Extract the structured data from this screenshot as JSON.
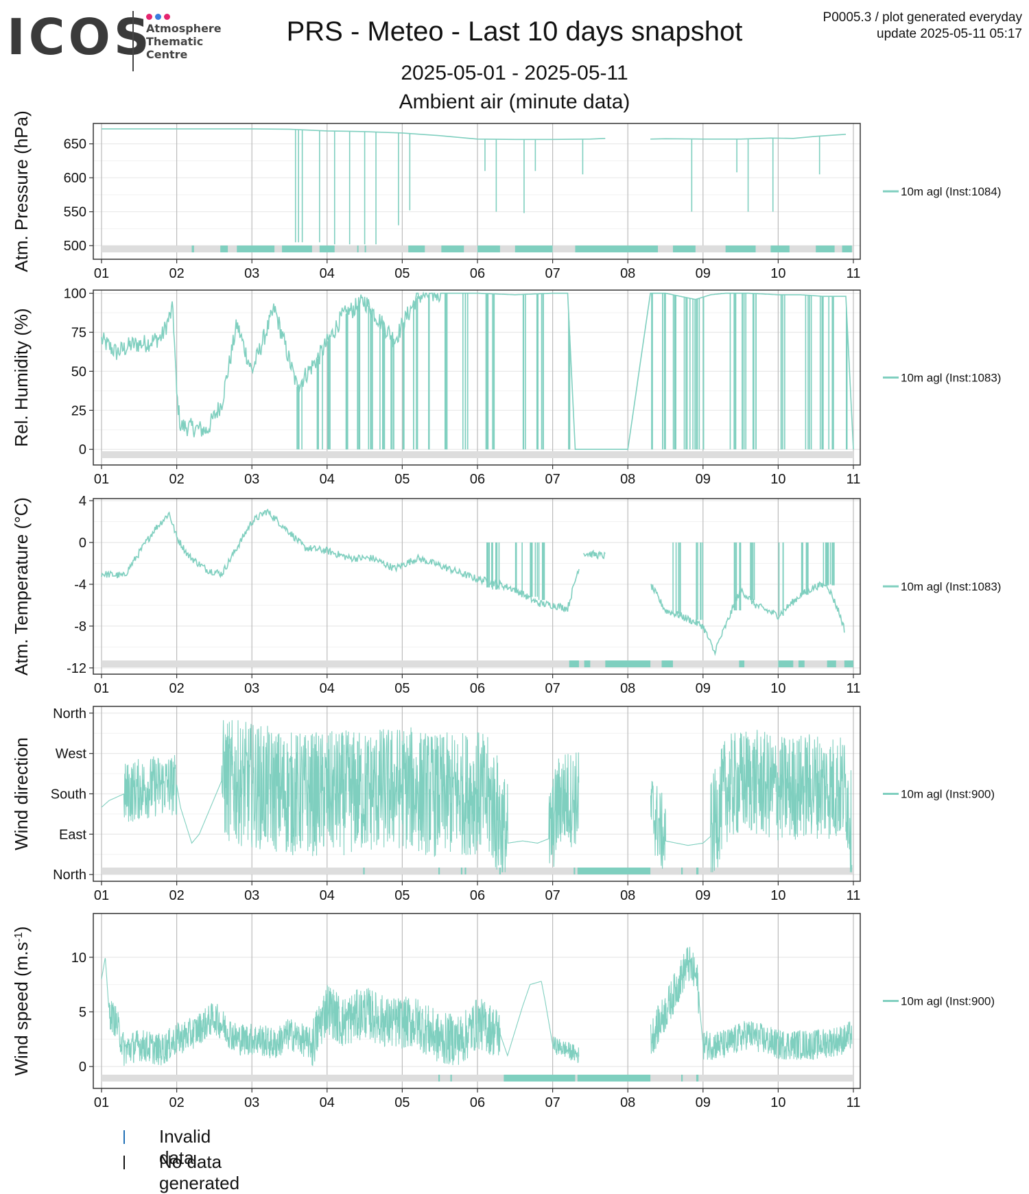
{
  "header": {
    "logo_text": "ICOS",
    "logo_sub": [
      "Atmosphere",
      "Thematic",
      "Centre"
    ],
    "title": "PRS - Meteo - Last 10 days snapshot",
    "date_range": "2025-05-01 - 2025-05-11",
    "subtitle": "Ambient air (minute data)",
    "corner_line1": "P0005.3 / plot generated everyday",
    "corner_line2": "update  2025-05-11 05:17"
  },
  "colors": {
    "series": "#7fcfbf",
    "grid": "#e8e8e8",
    "vgrid": "#bbbbbb",
    "band": "#dddddd",
    "invalid": "#1f6fb5",
    "nodata": "#111111",
    "logo_dots": [
      "#e5256f",
      "#3a7dde",
      "#e5256f"
    ]
  },
  "chart_data": [
    {
      "type": "line",
      "ylabel": "Atm. Pressure (hPa)",
      "legend": "10m agl (Inst:1084)",
      "ylim": [
        480,
        680
      ],
      "yticks": [
        500,
        550,
        600,
        650
      ],
      "yticklabels": [
        "500",
        "550",
        "600",
        "650"
      ],
      "x": [
        0,
        0.5,
        1,
        1.5,
        2,
        2.5,
        3,
        3.5,
        4,
        4.5,
        5,
        5.5,
        6,
        6.5,
        6.7,
        7.3,
        7.5,
        8,
        8.5,
        8.9,
        9.2,
        9.5,
        9.9
      ],
      "values": [
        672,
        672,
        672,
        672,
        672,
        671.5,
        669,
        668,
        666,
        662,
        657,
        656.5,
        656.5,
        657,
        658,
        657,
        657.5,
        657,
        657,
        658.5,
        658,
        661,
        664
      ],
      "spikes": [
        [
          2.58,
          505
        ],
        [
          2.62,
          505
        ],
        [
          2.67,
          505
        ],
        [
          2.9,
          505
        ],
        [
          3.1,
          502
        ],
        [
          3.3,
          502
        ],
        [
          3.5,
          502
        ],
        [
          3.65,
          502
        ],
        [
          3.95,
          530
        ],
        [
          4.1,
          552
        ],
        [
          5.1,
          610
        ],
        [
          5.25,
          550
        ],
        [
          5.62,
          548
        ],
        [
          5.77,
          610
        ],
        [
          6.4,
          605
        ],
        [
          7.85,
          550
        ],
        [
          8.45,
          608
        ],
        [
          8.6,
          550
        ],
        [
          8.93,
          550
        ],
        [
          9.55,
          605
        ]
      ],
      "band_segments": [
        [
          1.2,
          1.23
        ],
        [
          1.58,
          1.68
        ],
        [
          1.8,
          2.3
        ],
        [
          2.4,
          2.8
        ],
        [
          2.9,
          3.1
        ],
        [
          3.4,
          3.4
        ],
        [
          3.5,
          3.5
        ],
        [
          4.08,
          4.3
        ],
        [
          4.52,
          4.82
        ],
        [
          5.0,
          5.3
        ],
        [
          5.5,
          6.0
        ],
        [
          6.3,
          7.4
        ],
        [
          7.6,
          7.9
        ],
        [
          8.3,
          8.7
        ],
        [
          8.9,
          9.15
        ],
        [
          9.5,
          9.75
        ],
        [
          9.85,
          9.98
        ]
      ],
      "xticklabels": [
        "01",
        "02",
        "03",
        "04",
        "05",
        "06",
        "07",
        "08",
        "09",
        "10",
        "11"
      ]
    },
    {
      "type": "line",
      "ylabel": "Rel. Humidity (%)",
      "legend": "10m agl (Inst:1083)",
      "ylim": [
        -10,
        102
      ],
      "yticks": [
        0,
        25,
        50,
        75
      ],
      "yticklabels": [
        "0",
        "25",
        "50",
        "75"
      ],
      "top_tick_label": "100",
      "x": [
        0,
        0.2,
        0.4,
        0.6,
        0.8,
        0.95,
        1.0,
        1.05,
        1.2,
        1.4,
        1.6,
        1.8,
        2.0,
        2.3,
        2.6,
        2.9,
        3.2,
        3.5,
        3.9,
        4.2,
        4.5,
        5.0,
        5.5,
        6.0,
        6.2,
        6.3,
        6.7,
        7.0,
        7.3,
        7.5,
        7.9,
        8.1,
        8.3,
        8.6,
        9.0,
        9.3,
        9.6,
        9.9,
        10.0
      ],
      "values": [
        70,
        62,
        67,
        68,
        72,
        90,
        35,
        15,
        14,
        12,
        30,
        80,
        50,
        90,
        40,
        60,
        85,
        95,
        70,
        98,
        100,
        100,
        99,
        100,
        100,
        0,
        0,
        0,
        100,
        100,
        96,
        99,
        100,
        100,
        99,
        99,
        98,
        98,
        0
      ],
      "drops": [
        2.6,
        2.85,
        3.0,
        3.2,
        3.4,
        3.55,
        3.7,
        3.85,
        4.0,
        4.15,
        4.35,
        4.55,
        4.8,
        5.1,
        5.2,
        5.6,
        5.75,
        5.85,
        6.2,
        6.42,
        6.52,
        6.6,
        6.7,
        7.3,
        7.45,
        7.6,
        7.75,
        7.85,
        7.95,
        8.35,
        8.5,
        8.65,
        9.0,
        9.35,
        9.55,
        9.65,
        9.9
      ],
      "band_segments": [],
      "xticklabels": [
        "01",
        "02",
        "03",
        "04",
        "05",
        "06",
        "07",
        "08",
        "09",
        "10",
        "11"
      ]
    },
    {
      "type": "line",
      "ylabel": "Atm. Temperature (°C)",
      "legend": "10m agl (Inst:1083)",
      "ylim": [
        -12.6,
        4.2
      ],
      "yticks": [
        -12,
        -8,
        -4,
        0,
        4
      ],
      "yticklabels": [
        "-12",
        "-8",
        "-4",
        "0",
        "4"
      ],
      "x": [
        0,
        0.3,
        0.5,
        0.7,
        0.9,
        1.0,
        1.15,
        1.25,
        1.4,
        1.6,
        1.8,
        2.0,
        2.2,
        2.5,
        2.7,
        3.0,
        3.3,
        3.6,
        3.9,
        4.2,
        4.5,
        4.8,
        5.0,
        5.2,
        5.5,
        5.8,
        6.0,
        6.2,
        6.4,
        6.7,
        7.3,
        7.5,
        7.7,
        8.0,
        8.15,
        8.3,
        8.5,
        8.7,
        9.0,
        9.3,
        9.5,
        9.65,
        9.8,
        9.88
      ],
      "values": [
        -3.0,
        -3.2,
        -1.0,
        1.2,
        2.8,
        0.5,
        -1.2,
        -1.8,
        -2.6,
        -3.0,
        -0.5,
        2.0,
        3.0,
        1.0,
        -0.5,
        -0.8,
        -1.5,
        -1.5,
        -2.5,
        -1.5,
        -2.2,
        -3.0,
        -3.5,
        -3.8,
        -4.5,
        -5.8,
        -6.0,
        -6.3,
        -1.0,
        -1.3,
        -4.0,
        -6.5,
        -7.0,
        -8.0,
        -10.5,
        -8.0,
        -4.5,
        -6.0,
        -7.0,
        -5.0,
        -4.2,
        -4.0,
        -6.5,
        -8.3
      ],
      "drops": [
        [
          5.1,
          -4.3
        ],
        [
          5.2,
          -4.5
        ],
        [
          5.5,
          -4.8
        ],
        [
          5.7,
          -5.2
        ],
        [
          5.8,
          -5.5
        ],
        [
          7.6,
          -6.8
        ],
        [
          7.9,
          -7.4
        ],
        [
          8.4,
          -6.5
        ],
        [
          8.6,
          -5.5
        ],
        [
          9.0,
          -7.0
        ],
        [
          9.3,
          -5.0
        ],
        [
          9.6,
          -4.0
        ],
        [
          9.65,
          -4.1
        ]
      ],
      "band_segments": [
        [
          6.22,
          6.35
        ],
        [
          6.42,
          6.5
        ],
        [
          6.7,
          7.3
        ],
        [
          7.45,
          7.6
        ],
        [
          8.48,
          8.55
        ],
        [
          9.0,
          9.2
        ],
        [
          9.27,
          9.35
        ],
        [
          9.65,
          9.77
        ],
        [
          9.88,
          10.0
        ]
      ],
      "xticklabels": [
        "01",
        "02",
        "03",
        "04",
        "05",
        "06",
        "07",
        "08",
        "09",
        "10",
        "11"
      ]
    },
    {
      "type": "line",
      "ylabel": "Wind direction",
      "legend": "10m agl (Inst:900)",
      "ylim": [
        -15,
        375
      ],
      "yticks": [
        0,
        90,
        180,
        270,
        360
      ],
      "yticklabels": [
        "North",
        "East",
        "South",
        "West",
        "North"
      ],
      "x": [
        0,
        0.1,
        0.3,
        0.5,
        0.8,
        1.0,
        1.05,
        1.2,
        1.3,
        1.6,
        2.0,
        2.5,
        3.0,
        3.5,
        4.0,
        4.5,
        5.0,
        5.2,
        5.4,
        5.6,
        5.8,
        5.95,
        6.1,
        6.35,
        7.3,
        7.5,
        7.8,
        8.0,
        8.1,
        8.3,
        8.6,
        9.0,
        9.5,
        9.9,
        9.98
      ],
      "values": [
        150,
        165,
        180,
        190,
        200,
        200,
        150,
        70,
        90,
        210,
        200,
        180,
        180,
        185,
        195,
        175,
        185,
        160,
        70,
        75,
        70,
        80,
        170,
        170,
        150,
        75,
        65,
        70,
        85,
        190,
        210,
        190,
        200,
        190,
        100
      ],
      "noise": [
        [
          0.3,
          1.0,
          70
        ],
        [
          1.6,
          5.4,
          140
        ],
        [
          5.95,
          6.35,
          110
        ],
        [
          7.3,
          7.5,
          90
        ],
        [
          8.1,
          9.98,
          120
        ]
      ],
      "band_segments": [
        [
          3.48,
          3.5
        ],
        [
          4.48,
          4.5
        ],
        [
          4.78,
          4.8
        ],
        [
          4.83,
          4.85
        ],
        [
          5.29,
          5.31
        ],
        [
          6.28,
          6.3
        ],
        [
          6.33,
          7.3
        ],
        [
          7.71,
          7.73
        ],
        [
          7.91,
          7.94
        ]
      ],
      "xticklabels": [
        "01",
        "02",
        "03",
        "04",
        "05",
        "06",
        "07",
        "08",
        "09",
        "10",
        "11"
      ]
    },
    {
      "type": "line",
      "ylabel": "Wind speed (m.s",
      "ylabel_exp": "-1",
      "ylabel_close": ")",
      "legend": "10m agl (Inst:900)",
      "ylim": [
        -2.0,
        14.0
      ],
      "yticks": [
        0,
        5,
        10
      ],
      "yticklabels": [
        "0",
        "5",
        "10"
      ],
      "x": [
        0,
        0.05,
        0.1,
        0.2,
        0.3,
        0.5,
        0.8,
        1.0,
        1.2,
        1.5,
        1.8,
        2.1,
        2.3,
        2.5,
        2.8,
        3.0,
        3.2,
        3.5,
        3.8,
        4.0,
        4.2,
        4.5,
        4.8,
        5.0,
        5.3,
        5.4,
        5.6,
        5.7,
        5.85,
        5.9,
        6.0,
        6.2,
        6.35,
        7.3,
        7.5,
        7.7,
        7.8,
        7.92,
        8.0,
        8.3,
        8.6,
        9.0,
        9.5,
        9.9,
        9.98
      ],
      "values": [
        8.0,
        10.0,
        5.0,
        4.0,
        1.5,
        2.0,
        1.5,
        2.5,
        3.0,
        4.5,
        2.5,
        2.5,
        2.0,
        3.0,
        2.0,
        5.5,
        4.0,
        5.0,
        4.0,
        4.0,
        4.0,
        2.5,
        2.5,
        4.0,
        3.0,
        1.0,
        5.5,
        7.5,
        7.8,
        6.0,
        2.0,
        1.5,
        1.0,
        2.5,
        5.0,
        8.0,
        9.5,
        8.0,
        2.0,
        2.0,
        3.0,
        2.0,
        2.0,
        2.5,
        3.0
      ],
      "noise": [
        [
          0.1,
          2.8,
          1.5
        ],
        [
          2.8,
          5.3,
          2.4
        ],
        [
          6.0,
          6.35,
          0.8
        ],
        [
          7.3,
          7.95,
          1.8
        ],
        [
          8.0,
          9.98,
          1.4
        ]
      ],
      "band_segments": [
        [
          4.48,
          4.5
        ],
        [
          4.64,
          4.66
        ],
        [
          5.35,
          6.3
        ],
        [
          6.33,
          7.3
        ],
        [
          7.71,
          7.73
        ],
        [
          7.91,
          7.94
        ]
      ],
      "xticklabels": [
        "01",
        "02",
        "03",
        "04",
        "05",
        "06",
        "07",
        "08",
        "09",
        "10",
        "11"
      ]
    }
  ],
  "footer_legend": [
    {
      "label": "Invalid data"
    },
    {
      "label": "No data generated"
    }
  ]
}
